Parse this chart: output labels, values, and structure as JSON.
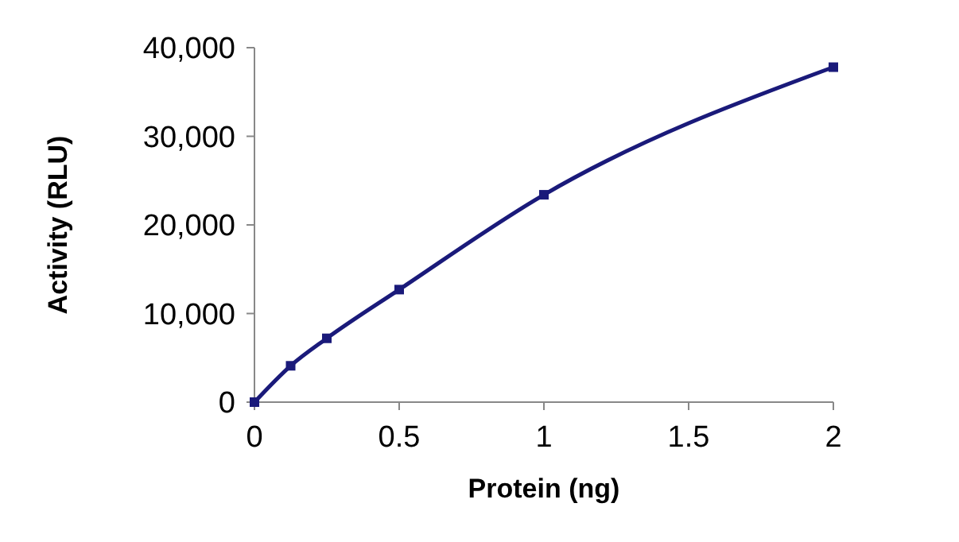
{
  "chart_data": {
    "type": "line",
    "xlabel": "Protein (ng)",
    "ylabel": "Activity (RLU)",
    "x": [
      0,
      0.125,
      0.25,
      0.5,
      1,
      2
    ],
    "series": [
      {
        "color": "#1a1a7a",
        "values": [
          0,
          4100,
          7200,
          12700,
          23400,
          37800
        ]
      }
    ],
    "xlim": [
      0,
      2
    ],
    "xticks": [
      0,
      0.5,
      1,
      1.5,
      2
    ],
    "ylim": [
      0,
      40000
    ],
    "yticks": [
      {
        "value": 0,
        "label": "0"
      },
      {
        "value": 10000,
        "label": "10,000"
      },
      {
        "value": 20000,
        "label": "20,000"
      },
      {
        "value": 30000,
        "label": "30,000"
      },
      {
        "value": 40000,
        "label": "40,000"
      }
    ],
    "grid": false,
    "marker": "square",
    "line_style": "solid"
  }
}
